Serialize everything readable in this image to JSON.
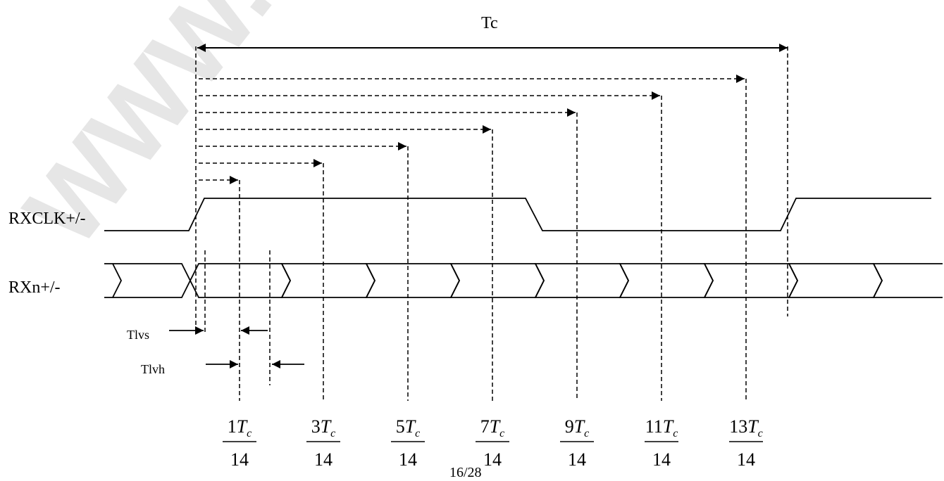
{
  "watermark": "WWW.P",
  "signals": {
    "clock": "RXCLK+/-",
    "data": "RXn+/-"
  },
  "period_label": "Tc",
  "setup_label": "Tlvs",
  "hold_label": "Tlvh",
  "fractions": [
    {
      "num": "1",
      "var": "T",
      "sub": "c",
      "den": "14"
    },
    {
      "num": "3",
      "var": "T",
      "sub": "c",
      "den": "14"
    },
    {
      "num": "5",
      "var": "T",
      "sub": "c",
      "den": "14"
    },
    {
      "num": "7",
      "var": "T",
      "sub": "c",
      "den": "14"
    },
    {
      "num": "9",
      "var": "T",
      "sub": "c",
      "den": "14"
    },
    {
      "num": "11",
      "var": "T",
      "sub": "c",
      "den": "14"
    },
    {
      "num": "13",
      "var": "T",
      "sub": "c",
      "den": "14"
    }
  ],
  "page_number": "16/28"
}
